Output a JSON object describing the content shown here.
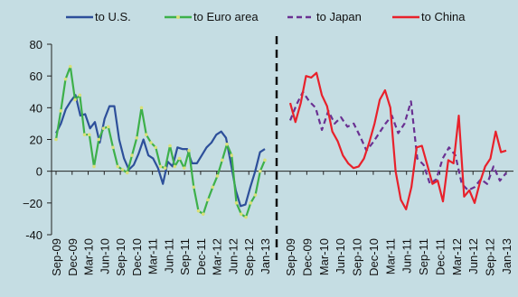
{
  "chart_data": {
    "type": "line",
    "ylim": [
      -40,
      80
    ],
    "yticks": [
      "80",
      "60",
      "40",
      "20",
      "0",
      "−20",
      "-40"
    ],
    "ytick_values": [
      80,
      60,
      40,
      20,
      0,
      -20,
      -40
    ],
    "legend_position": "top",
    "colors": {
      "us": "#2d4f9a",
      "euro": "#3db04a",
      "japan": "#6a3192",
      "china": "#e8212b",
      "euro_marker": "#d9e07a",
      "divider": "#111111"
    },
    "panels": [
      {
        "xticks": [
          "Sep-09",
          "Dec-09",
          "Mar-10",
          "Jun-10",
          "Sep-10",
          "Dec-10",
          "Mar-11",
          "Jun-11",
          "Sep-11",
          "Dec-11",
          "Mar-12",
          "Jun-12",
          "Sep-12",
          "Jan-13"
        ],
        "series": [
          {
            "name": "to U.S.",
            "key": "us",
            "values": [
              24,
              30,
              39,
              44,
              48,
              35,
              36,
              27,
              31,
              18,
              33,
              41,
              41,
              20,
              8,
              1,
              4,
              11,
              20,
              10,
              8,
              2,
              -8,
              6,
              3,
              15,
              14,
              14,
              5,
              5,
              10,
              15,
              18,
              23,
              25,
              21,
              5,
              -12,
              -22,
              -21,
              -10,
              0,
              12,
              14
            ]
          },
          {
            "name": "to Euro area",
            "key": "euro",
            "values": [
              20,
              38,
              58,
              66,
              45,
              48,
              23,
              23,
              3,
              20,
              27,
              28,
              15,
              3,
              1,
              -1,
              10,
              21,
              40,
              23,
              18,
              15,
              3,
              2,
              16,
              3,
              8,
              2,
              13,
              -10,
              -25,
              -27,
              -18,
              -10,
              -3,
              7,
              17,
              10,
              -20,
              -27,
              -29,
              -20,
              -15,
              0,
              7
            ]
          }
        ]
      },
      {
        "xticks": [
          "Sep-09",
          "Dec-09",
          "Mar-10",
          "Jun-10",
          "Sep-10",
          "Dec-10",
          "Mar-11",
          "Jun-11",
          "Sep-11",
          "Dec-11",
          "Mar-12",
          "Jun-12",
          "Sep-12",
          "Jan-13"
        ],
        "series": [
          {
            "name": "to Japan",
            "key": "japan",
            "values": [
              32,
              42,
              50,
              44,
              40,
              26,
              38,
              30,
              34,
              28,
              30,
              22,
              13,
              18,
              24,
              30,
              35,
              24,
              30,
              44,
              8,
              4,
              -8,
              -5,
              8,
              15,
              10,
              -8,
              -12,
              -10,
              -5,
              -8,
              3,
              -6,
              -1
            ]
          },
          {
            "name": "to China",
            "key": "china",
            "values": [
              43,
              31,
              43,
              60,
              59,
              62,
              48,
              41,
              25,
              19,
              10,
              5,
              2,
              3,
              8,
              18,
              30,
              45,
              51,
              40,
              0,
              -18,
              -24,
              -10,
              15,
              16,
              4,
              -8,
              -6,
              -19,
              7,
              5,
              35,
              -16,
              -12,
              -20,
              -7,
              3,
              8,
              25,
              12,
              13
            ]
          }
        ]
      }
    ]
  }
}
